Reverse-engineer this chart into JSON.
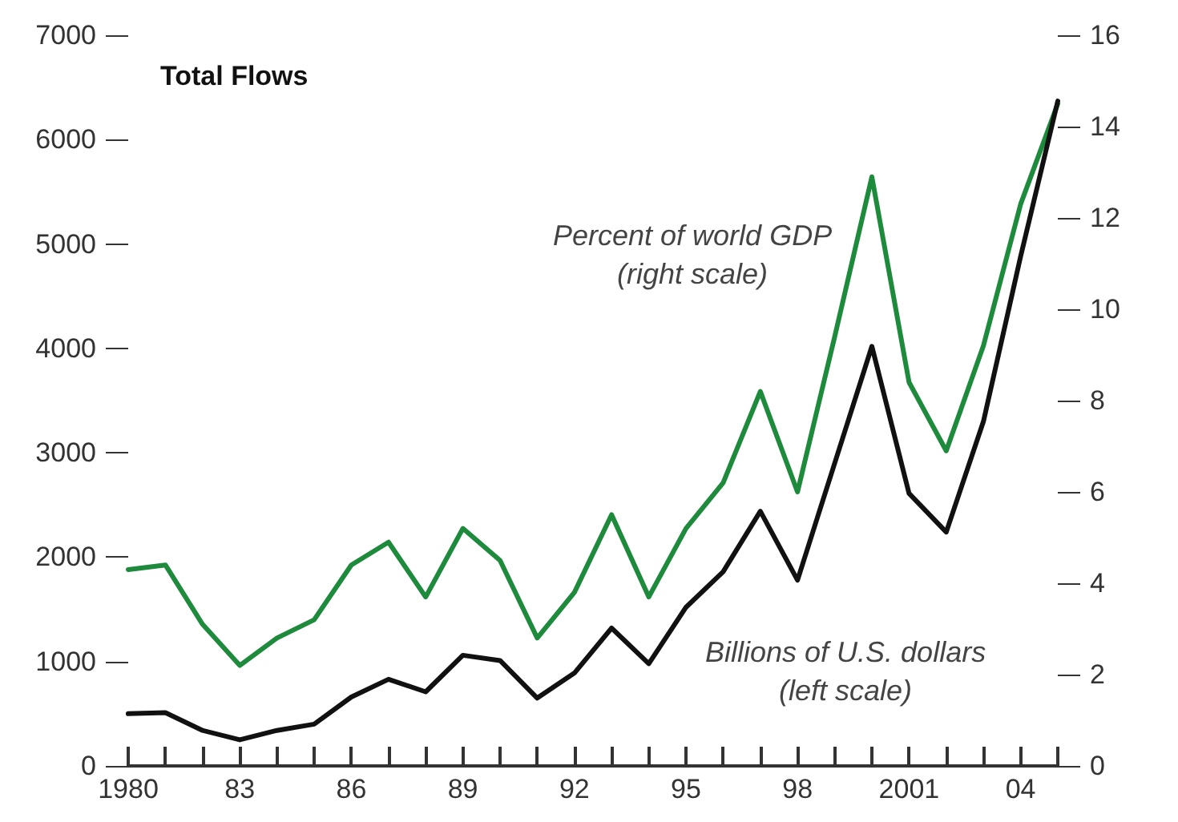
{
  "chart_data": {
    "type": "line",
    "title": "Total Flows",
    "x": [
      1980,
      1981,
      1982,
      1983,
      1984,
      1985,
      1986,
      1987,
      1988,
      1989,
      1990,
      1991,
      1992,
      1993,
      1994,
      1995,
      1996,
      1997,
      1998,
      1999,
      2000,
      2001,
      2002,
      2003,
      2004,
      2005
    ],
    "xlim": [
      1980,
      2005
    ],
    "xticks": [
      {
        "value": 1980,
        "label": "1980"
      },
      {
        "value": 1981,
        "label": null
      },
      {
        "value": 1982,
        "label": null
      },
      {
        "value": 1983,
        "label": "83"
      },
      {
        "value": 1984,
        "label": null
      },
      {
        "value": 1985,
        "label": null
      },
      {
        "value": 1986,
        "label": "86"
      },
      {
        "value": 1987,
        "label": null
      },
      {
        "value": 1988,
        "label": null
      },
      {
        "value": 1989,
        "label": "89"
      },
      {
        "value": 1990,
        "label": null
      },
      {
        "value": 1991,
        "label": null
      },
      {
        "value": 1992,
        "label": "92"
      },
      {
        "value": 1993,
        "label": null
      },
      {
        "value": 1994,
        "label": null
      },
      {
        "value": 1995,
        "label": "95"
      },
      {
        "value": 1996,
        "label": null
      },
      {
        "value": 1997,
        "label": null
      },
      {
        "value": 1998,
        "label": "98"
      },
      {
        "value": 1999,
        "label": null
      },
      {
        "value": 2000,
        "label": null
      },
      {
        "value": 2001,
        "label": "2001"
      },
      {
        "value": 2002,
        "label": null
      },
      {
        "value": 2003,
        "label": null
      },
      {
        "value": 2004,
        "label": "04"
      },
      {
        "value": 2005,
        "label": null
      }
    ],
    "ylim": [
      0,
      7000
    ],
    "yticks": [
      0,
      1000,
      2000,
      3000,
      4000,
      5000,
      6000,
      7000
    ],
    "y2lim": [
      0,
      16
    ],
    "y2ticks": [
      0,
      2,
      4,
      6,
      8,
      10,
      12,
      14,
      16
    ],
    "grid": false,
    "legend": false,
    "marker": "none",
    "line_style": "solid",
    "series": [
      {
        "name": "Percent of world GDP\n(right scale)",
        "color": "#1e8a3c",
        "axis": "y2",
        "values": [
          4.3,
          4.4,
          3.1,
          2.2,
          2.8,
          3.2,
          4.4,
          4.9,
          3.7,
          5.2,
          4.5,
          2.8,
          3.8,
          5.5,
          3.7,
          5.2,
          6.2,
          8.2,
          6.0,
          9.4,
          12.9,
          8.4,
          6.9,
          9.2,
          12.3,
          14.5
        ]
      },
      {
        "name": "Billions of U.S. dollars\n(left scale)",
        "color": "#111111",
        "values": [
          500,
          510,
          340,
          250,
          340,
          400,
          660,
          830,
          710,
          1060,
          1010,
          650,
          890,
          1320,
          980,
          1520,
          1860,
          2440,
          1780,
          2900,
          4020,
          2610,
          2240,
          3300,
          4880,
          6370
        ]
      }
    ]
  }
}
